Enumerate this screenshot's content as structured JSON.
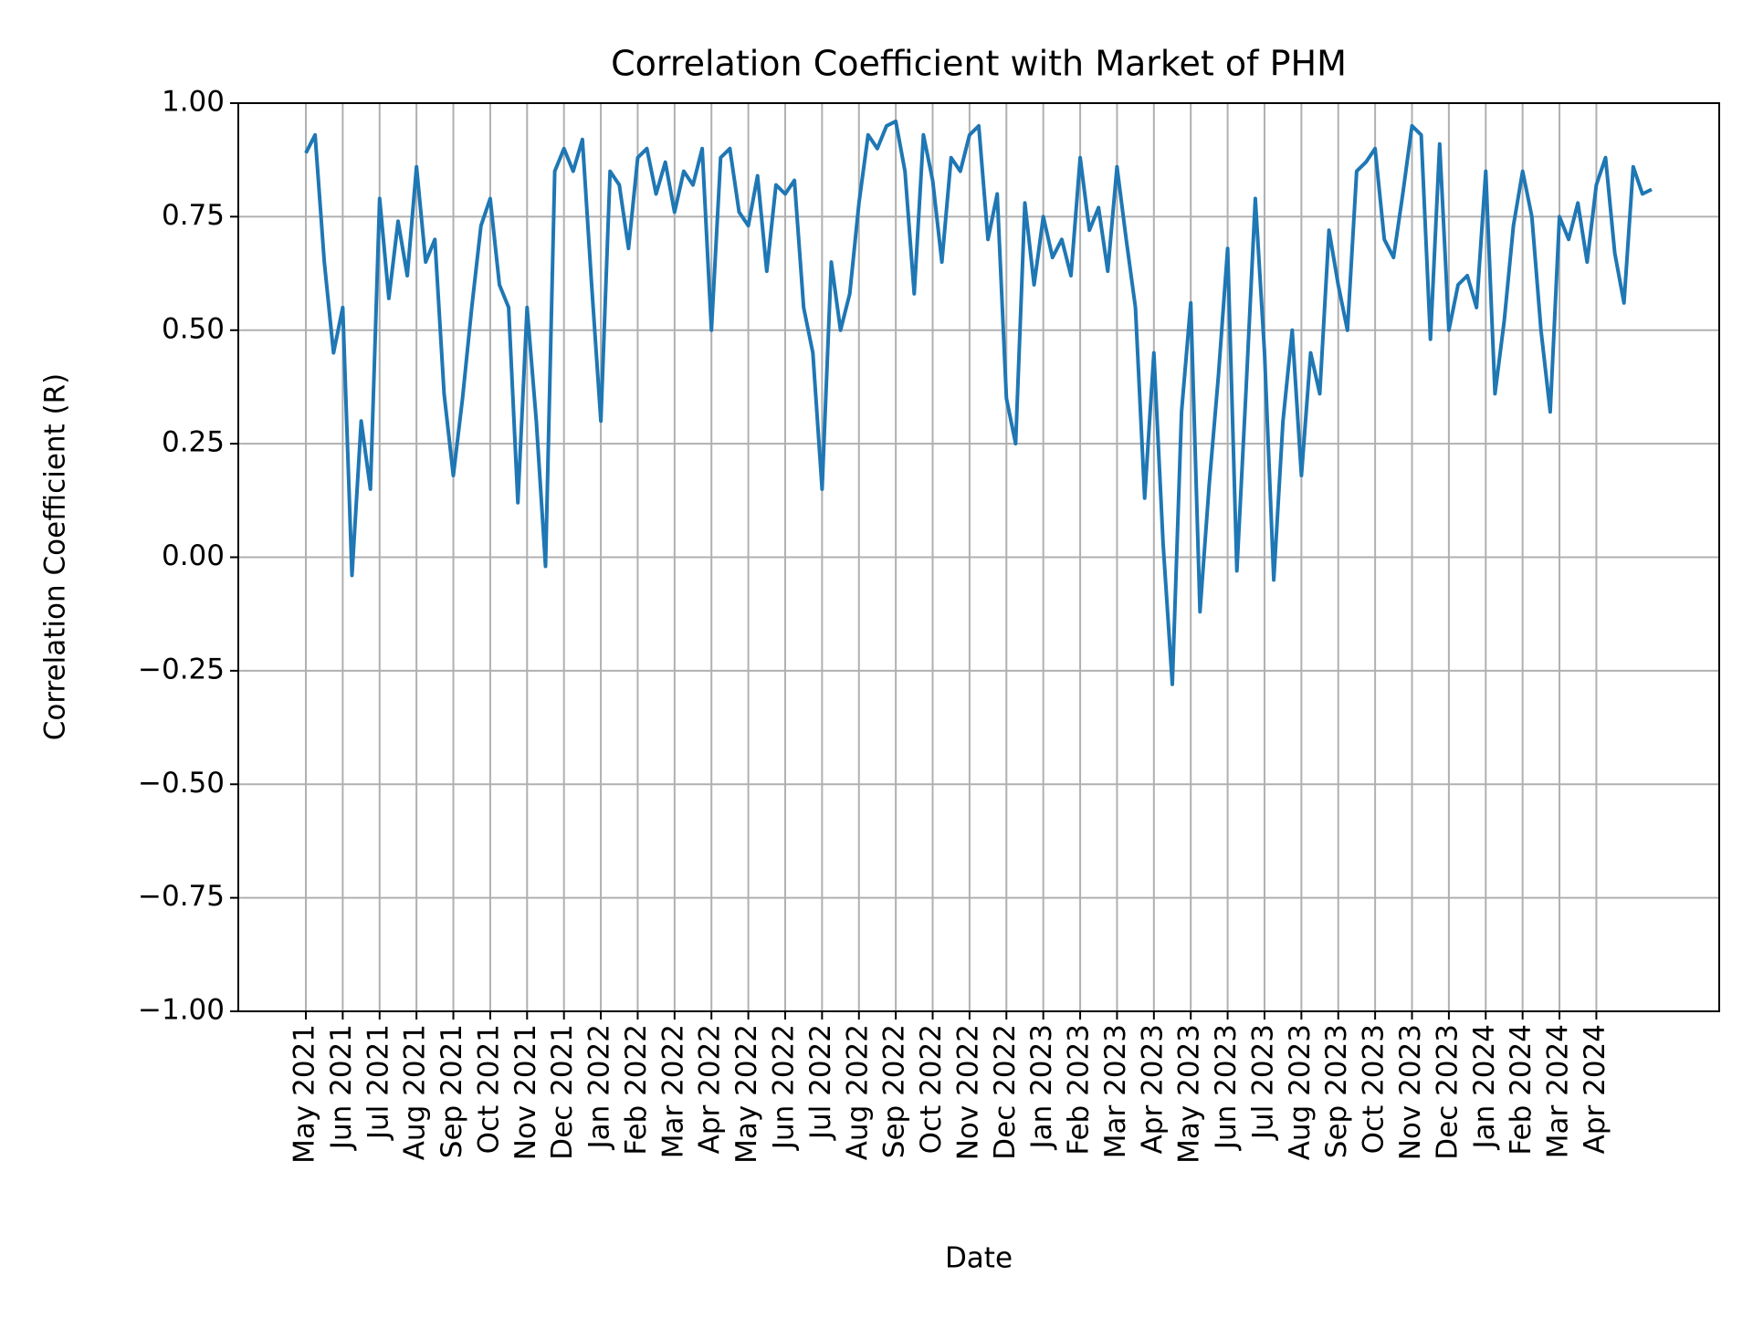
{
  "chart_data": {
    "type": "line",
    "title": "Correlation Coefficient with Market of PHM",
    "x_label": "Date",
    "y_label": "Correlation Coefficient (R)",
    "color": "#1f77b4",
    "grid": true,
    "categories": [
      "May 2021",
      null,
      null,
      null,
      "Jun 2021",
      null,
      null,
      null,
      "Jul 2021",
      null,
      null,
      null,
      "Aug 2021",
      null,
      null,
      null,
      "Sep 2021",
      null,
      null,
      null,
      "Oct 2021",
      null,
      null,
      null,
      "Nov 2021",
      null,
      null,
      null,
      "Dec 2021",
      null,
      null,
      null,
      "Jan 2022",
      null,
      null,
      null,
      "Feb 2022",
      null,
      null,
      null,
      "Mar 2022",
      null,
      null,
      null,
      "Apr 2022",
      null,
      null,
      null,
      "May 2022",
      null,
      null,
      null,
      "Jun 2022",
      null,
      null,
      null,
      "Jul 2022",
      null,
      null,
      null,
      "Aug 2022",
      null,
      null,
      null,
      "Sep 2022",
      null,
      null,
      null,
      "Oct 2022",
      null,
      null,
      null,
      "Nov 2022",
      null,
      null,
      null,
      "Dec 2022",
      null,
      null,
      null,
      "Jan 2023",
      null,
      null,
      null,
      "Feb 2023",
      null,
      null,
      null,
      "Mar 2023",
      null,
      null,
      null,
      "Apr 2023",
      null,
      null,
      null,
      "May 2023",
      null,
      null,
      null,
      "Jun 2023",
      null,
      null,
      null,
      "Jul 2023",
      null,
      null,
      null,
      "Aug 2023",
      null,
      null,
      null,
      "Sep 2023",
      null,
      null,
      null,
      "Oct 2023",
      null,
      null,
      null,
      "Nov 2023",
      null,
      null,
      null,
      "Dec 2023",
      null,
      null,
      null,
      "Jan 2024",
      null,
      null,
      null,
      "Feb 2024",
      null,
      null,
      null,
      "Mar 2024",
      null,
      null,
      null,
      "Apr 2024",
      null,
      null,
      null,
      null,
      null,
      null
    ],
    "values": [
      0.89,
      0.93,
      0.65,
      0.45,
      0.55,
      -0.04,
      0.3,
      0.15,
      0.79,
      0.57,
      0.74,
      0.62,
      0.86,
      0.65,
      0.7,
      0.36,
      0.18,
      0.35,
      0.55,
      0.73,
      0.79,
      0.6,
      0.55,
      0.12,
      0.55,
      0.3,
      -0.02,
      0.85,
      0.9,
      0.85,
      0.92,
      0.6,
      0.3,
      0.85,
      0.82,
      0.68,
      0.88,
      0.9,
      0.8,
      0.87,
      0.76,
      0.85,
      0.82,
      0.9,
      0.5,
      0.88,
      0.9,
      0.76,
      0.73,
      0.84,
      0.63,
      0.82,
      0.8,
      0.83,
      0.55,
      0.45,
      0.15,
      0.65,
      0.5,
      0.58,
      0.78,
      0.93,
      0.9,
      0.95,
      0.96,
      0.85,
      0.58,
      0.93,
      0.83,
      0.65,
      0.88,
      0.85,
      0.93,
      0.95,
      0.7,
      0.8,
      0.35,
      0.25,
      0.78,
      0.6,
      0.75,
      0.66,
      0.7,
      0.62,
      0.88,
      0.72,
      0.77,
      0.63,
      0.86,
      0.7,
      0.55,
      0.13,
      0.45,
      0.03,
      -0.28,
      0.32,
      0.56,
      -0.12,
      0.16,
      0.4,
      0.68,
      -0.03,
      0.37,
      0.79,
      0.45,
      -0.05,
      0.3,
      0.5,
      0.18,
      0.45,
      0.36,
      0.72,
      0.6,
      0.5,
      0.85,
      0.87,
      0.9,
      0.7,
      0.66,
      0.8,
      0.95,
      0.93,
      0.48,
      0.91,
      0.5,
      0.6,
      0.62,
      0.55,
      0.85,
      0.36,
      0.52,
      0.73,
      0.85,
      0.75,
      0.5,
      0.32,
      0.75,
      0.7,
      0.78,
      0.65,
      0.82,
      0.88,
      0.67,
      0.56,
      0.86,
      0.8,
      0.81
    ],
    "ylim": [
      -1,
      1
    ],
    "yticks": [
      {
        "value": -1,
        "label": "−1.00"
      },
      {
        "value": -0.75,
        "label": "−0.75"
      },
      {
        "value": -0.5,
        "label": "−0.50"
      },
      {
        "value": -0.25,
        "label": "−0.25"
      },
      {
        "value": 0,
        "label": "0.00"
      },
      {
        "value": 0.25,
        "label": "0.25"
      },
      {
        "value": 0.5,
        "label": "0.50"
      },
      {
        "value": 0.75,
        "label": "0.75"
      },
      {
        "value": 1,
        "label": "1.00"
      }
    ]
  }
}
